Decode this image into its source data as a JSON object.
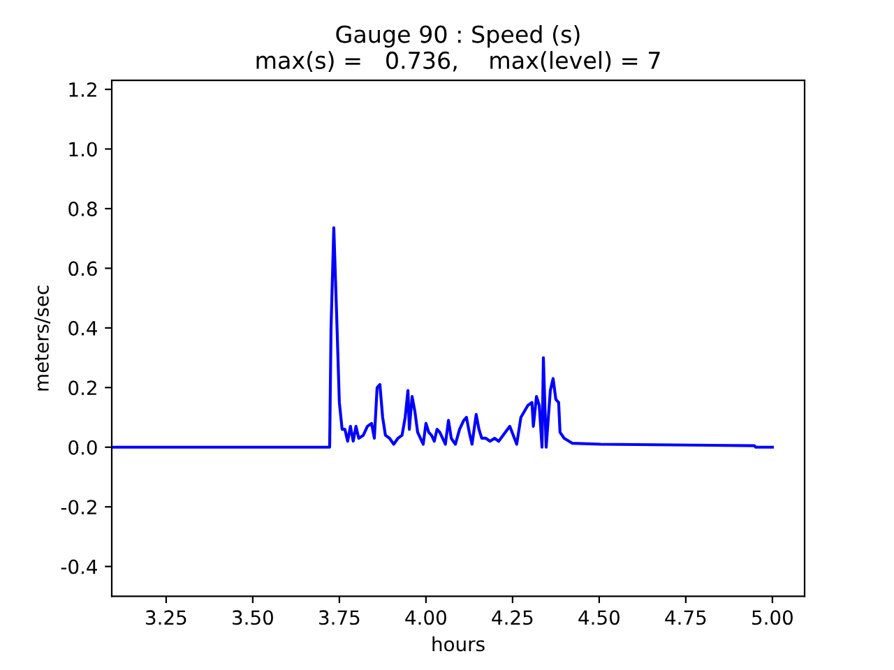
{
  "chart_data": {
    "type": "line",
    "title": "Gauge 90 : Speed (s)\nmax(s) =   0.736,    max(level) = 7",
    "xlabel": "hours",
    "ylabel": "meters/sec",
    "x": [
      3.093,
      3.722,
      3.726,
      3.734,
      3.742,
      3.75,
      3.758,
      3.766,
      3.774,
      3.782,
      3.79,
      3.798,
      3.806,
      3.819,
      3.831,
      3.843,
      3.851,
      3.859,
      3.867,
      3.875,
      3.883,
      3.895,
      3.907,
      3.919,
      3.931,
      3.94,
      3.948,
      3.952,
      3.96,
      3.968,
      3.976,
      3.984,
      3.992,
      4.0,
      4.008,
      4.016,
      4.024,
      4.032,
      4.04,
      4.048,
      4.056,
      4.065,
      4.073,
      4.085,
      4.097,
      4.109,
      4.117,
      4.125,
      4.133,
      4.145,
      4.153,
      4.161,
      4.173,
      4.185,
      4.198,
      4.21,
      4.242,
      4.262,
      4.274,
      4.294,
      4.306,
      4.31,
      4.319,
      4.327,
      4.335,
      4.339,
      4.347,
      4.359,
      4.367,
      4.375,
      4.383,
      4.387,
      4.399,
      4.423,
      4.504,
      4.948,
      4.952,
      5.0
    ],
    "series": [
      {
        "color": "#0000ff",
        "values": [
          0,
          0,
          0.4,
          0.736,
          0.45,
          0.15,
          0.06,
          0.06,
          0.02,
          0.07,
          0.02,
          0.07,
          0.03,
          0.04,
          0.07,
          0.08,
          0.03,
          0.2,
          0.21,
          0.1,
          0.04,
          0.03,
          0.01,
          0.03,
          0.04,
          0.1,
          0.19,
          0.06,
          0.17,
          0.12,
          0.05,
          0.03,
          0.01,
          0.08,
          0.05,
          0.04,
          0.02,
          0.06,
          0.05,
          0.03,
          0.01,
          0.09,
          0.03,
          0.01,
          0.06,
          0.09,
          0.1,
          0.05,
          0.01,
          0.11,
          0.06,
          0.03,
          0.03,
          0.02,
          0.03,
          0.02,
          0.07,
          0.01,
          0.1,
          0.14,
          0.15,
          0.07,
          0.17,
          0.14,
          0.0,
          0.3,
          0.0,
          0.19,
          0.23,
          0.16,
          0.15,
          0.05,
          0.03,
          0.013,
          0.01,
          0.005,
          0.0,
          0.0
        ]
      }
    ],
    "xlim": [
      3.093,
      5.093
    ],
    "ylim": [
      -0.5,
      1.23
    ],
    "xticks": [
      {
        "value": 3.25,
        "label": "3.25"
      },
      {
        "value": 3.5,
        "label": "3.50"
      },
      {
        "value": 3.75,
        "label": "3.75"
      },
      {
        "value": 4.0,
        "label": "4.00"
      },
      {
        "value": 4.25,
        "label": "4.25"
      },
      {
        "value": 4.5,
        "label": "4.50"
      },
      {
        "value": 4.75,
        "label": "4.75"
      },
      {
        "value": 5.0,
        "label": "5.00"
      }
    ],
    "yticks": [
      -0.4,
      -0.2,
      {
        "value": 0,
        "label": "0.0"
      },
      0.2,
      0.4,
      0.6,
      0.8,
      {
        "value": 1.0,
        "label": "1.0"
      },
      1.2
    ],
    "grid": false,
    "legend": false
  }
}
